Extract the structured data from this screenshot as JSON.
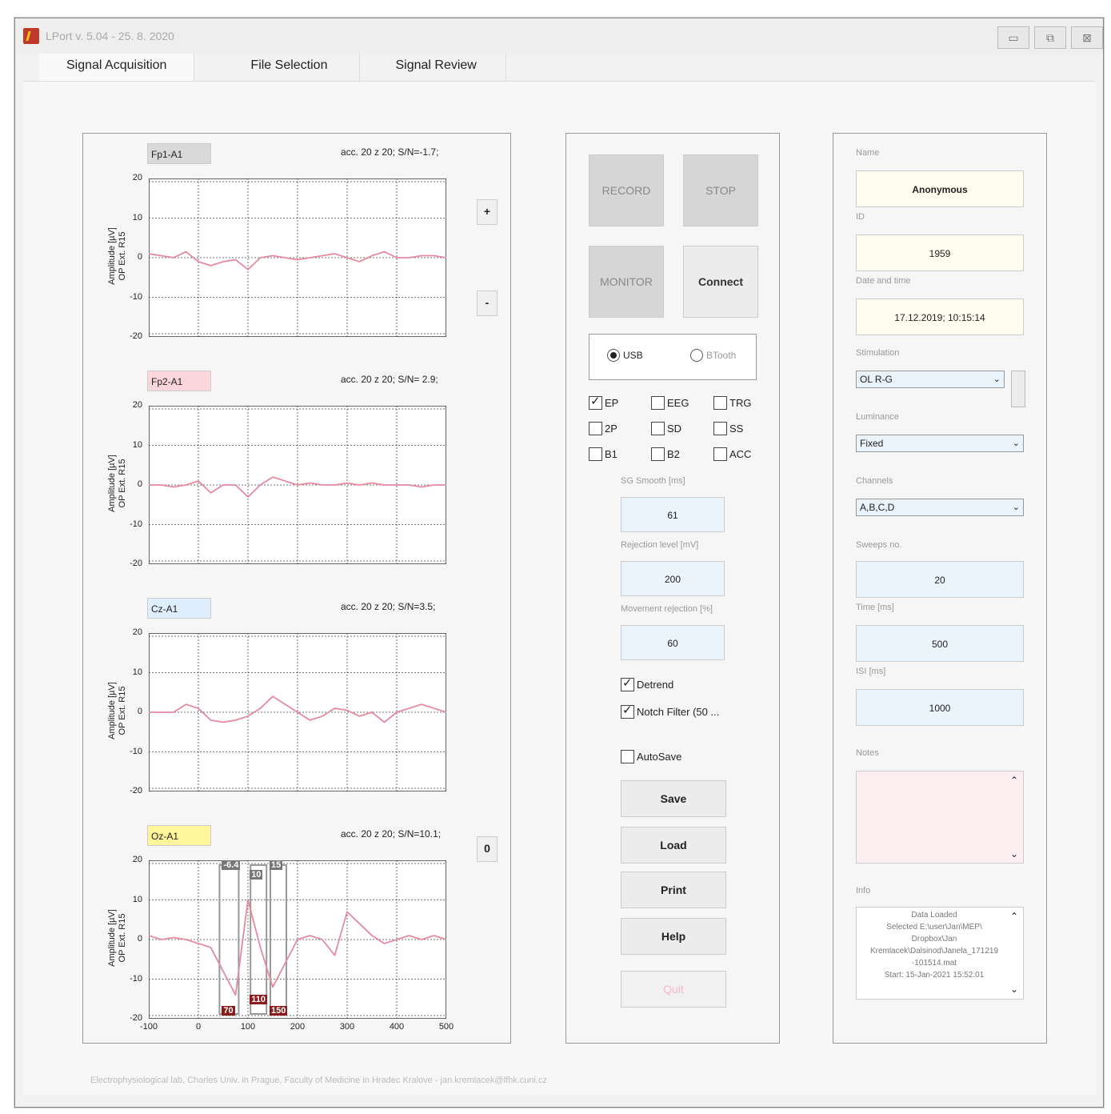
{
  "window": {
    "title": "LPort v. 5.04 - 25. 8. 2020",
    "controls": [
      "▭",
      "⧉",
      "⊠"
    ]
  },
  "tabs": [
    "Signal Acquisition",
    "File Selection",
    "Signal Review"
  ],
  "channels": [
    {
      "label": "Fp1-A1",
      "stats": "acc. 20 z 20; S/N=-1.7;",
      "label_color": "#d9d9d9"
    },
    {
      "label": "Fp2-A1",
      "stats": "acc. 20 z 20; S/N= 2.9;",
      "label_color": "#fbd6dc"
    },
    {
      "label": "Cz-A1",
      "stats": "acc. 20 z 20; S/N=3.5;",
      "label_color": "#dfeefc"
    },
    {
      "label": "Oz-A1",
      "stats": "acc. 20 z 20; S/N=10.1;",
      "label_color": "#fff59a"
    }
  ],
  "plot_common": {
    "ylabel_line1": "Amplitude [µV]",
    "ylabel_line2": "OP Ext. R15",
    "yticks": [
      "20",
      "10",
      "0",
      "-10",
      "-20"
    ],
    "xticks": [
      "-100",
      "0",
      "100",
      "200",
      "300",
      "400",
      "500"
    ],
    "trace_color": "#e58aa0",
    "ylim": [
      -20,
      20
    ],
    "xlim": [
      -100,
      500
    ]
  },
  "chart_data": [
    {
      "type": "line",
      "series": [
        {
          "values": [
            1,
            0.5,
            0,
            1.5,
            -1,
            -2,
            -1,
            -0.5,
            -3,
            0,
            0.5,
            0,
            -0.5,
            0,
            0.5,
            1,
            0,
            -1,
            0.5,
            1.5,
            0,
            0,
            0.5,
            0.5,
            0
          ]
        }
      ],
      "x": [
        -100,
        -75,
        -50,
        -25,
        0,
        25,
        50,
        75,
        100,
        125,
        150,
        175,
        200,
        225,
        250,
        275,
        300,
        325,
        350,
        375,
        400,
        425,
        450,
        475,
        500
      ]
    },
    {
      "type": "line",
      "series": [
        {
          "values": [
            0,
            0,
            -0.5,
            0,
            1,
            -2,
            0,
            0,
            -3,
            0,
            2,
            1,
            0,
            0.5,
            0,
            0,
            0.5,
            0,
            0.5,
            0,
            0,
            0,
            -0.5,
            0,
            0
          ]
        }
      ],
      "x": [
        -100,
        -75,
        -50,
        -25,
        0,
        25,
        50,
        75,
        100,
        125,
        150,
        175,
        200,
        225,
        250,
        275,
        300,
        325,
        350,
        375,
        400,
        425,
        450,
        475,
        500
      ]
    },
    {
      "type": "line",
      "series": [
        {
          "values": [
            0,
            0,
            0,
            2,
            1,
            -2,
            -2.5,
            -2,
            -1,
            1,
            4,
            2,
            0,
            -2,
            -1,
            1,
            0.5,
            -1,
            0,
            -2.5,
            0,
            1,
            2,
            1,
            0
          ]
        }
      ],
      "x": [
        -100,
        -75,
        -50,
        -25,
        0,
        25,
        50,
        75,
        100,
        125,
        150,
        175,
        200,
        225,
        250,
        275,
        300,
        325,
        350,
        375,
        400,
        425,
        450,
        475,
        500
      ]
    },
    {
      "type": "line",
      "series": [
        {
          "values": [
            1,
            0,
            0.5,
            0,
            -1,
            -2,
            -8,
            -14,
            10,
            -2,
            -12,
            -6,
            0,
            1,
            0,
            -4,
            7,
            4,
            1,
            -1,
            0,
            1,
            0,
            1,
            0
          ]
        }
      ],
      "x": [
        -100,
        -75,
        -50,
        -25,
        0,
        25,
        50,
        75,
        100,
        125,
        150,
        175,
        200,
        225,
        250,
        275,
        300,
        325,
        350,
        375,
        400,
        425,
        450,
        475,
        500
      ]
    }
  ],
  "markers": {
    "top": [
      "-6.4",
      "10",
      "15"
    ],
    "bottom": [
      "70",
      "110",
      "150"
    ]
  },
  "side_buttons": {
    "plus": "+",
    "minus": "-",
    "zero": "0"
  },
  "controls": {
    "record": "RECORD",
    "stop": "STOP",
    "monitor": "MONITOR",
    "connect": "Connect",
    "radio_usb": "USB",
    "radio_btooth": "BTooth",
    "checkboxes": [
      {
        "label": "EP",
        "checked": true
      },
      {
        "label": "EEG",
        "checked": false
      },
      {
        "label": "TRG",
        "checked": false
      },
      {
        "label": "2P",
        "checked": false
      },
      {
        "label": "SD",
        "checked": false
      },
      {
        "label": "SS",
        "checked": false
      },
      {
        "label": "B1",
        "checked": false
      },
      {
        "label": "B2",
        "checked": false
      },
      {
        "label": "ACC",
        "checked": false
      }
    ],
    "sg_smooth_label": "SG Smooth [ms]",
    "sg_smooth_value": "61",
    "rejection_label": "Rejection level [mV]",
    "rejection_value": "200",
    "movement_label": "Movement rejection [%]",
    "movement_value": "60",
    "detrend": "Detrend",
    "notch": "Notch Filter (50 ...",
    "autosave": "AutoSave",
    "save": "Save",
    "load": "Load",
    "print": "Print",
    "help": "Help",
    "quit": "Quit"
  },
  "subject": {
    "name_label": "Name",
    "name_value": "Anonymous",
    "id_label": "ID",
    "id_value": "1959",
    "date_label": "Date and time",
    "date_value": "17.12.2019; 10:15:14",
    "stimulation_label": "Stimulation",
    "stimulation_value": "OL R-G",
    "luminance_label": "Luminance",
    "luminance_value": "Fixed",
    "channels_label": "Channels",
    "channels_value": "A,B,C,D",
    "sweeps_label": "Sweeps no.",
    "sweeps_value": "20",
    "time_label": "Time [ms]",
    "time_value": "500",
    "isi_label": "ISI [ms]",
    "isi_value": "1000",
    "notes_label": "Notes",
    "info_label": "Info",
    "info_lines": [
      "Data Loaded",
      "Selected E:\\user\\Jan\\MEP\\",
      "Dropbox\\Jan",
      "Kremlacek\\Dalsinod\\Janela_171219",
      "-101514.mat",
      "Start: 15-Jan-2021 15:52:01"
    ]
  },
  "footer": "Electrophysiological lab, Charles Univ. in Prague, Faculty of Medicine in Hradec Kralove - jan.kremlacek@lfhk.cuni.cz"
}
